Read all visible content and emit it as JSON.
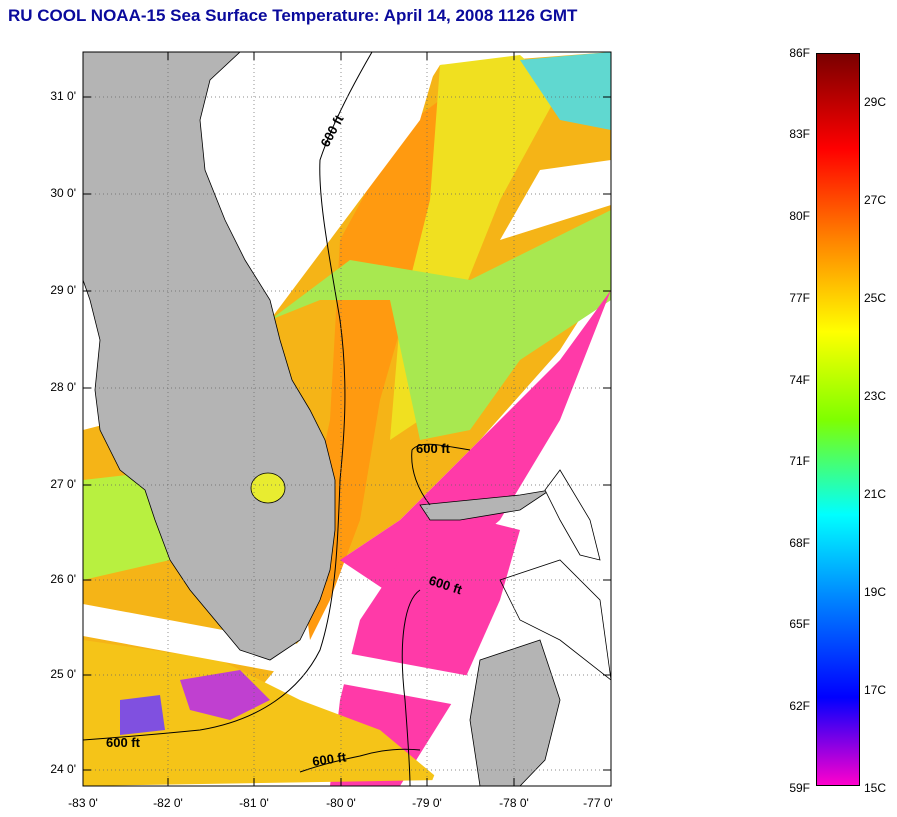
{
  "title": "RU COOL  NOAA-15  Sea Surface Temperature:  April 14, 2008 1126 GMT",
  "map": {
    "lat_ticks": [
      "31 0'",
      "30 0'",
      "29 0'",
      "28 0'",
      "27 0'",
      "26 0'",
      "25 0'",
      "24 0'"
    ],
    "lon_ticks": [
      "-83 0'",
      "-82 0'",
      "-81 0'",
      "-80 0'",
      "-79 0'",
      "-78 0'",
      "-77 0'"
    ],
    "contour_labels": [
      "600 ft",
      "600 ft",
      "600 ft",
      "600 ft",
      "600 ft"
    ],
    "colors": {
      "land": "#b4b4b4",
      "no_data": "#ffffff",
      "frame": "#000000"
    }
  },
  "colorbar": {
    "fahrenheit_labels": [
      "86F",
      "83F",
      "80F",
      "77F",
      "74F",
      "71F",
      "68F",
      "65F",
      "62F",
      "59F"
    ],
    "celsius_labels": [
      "29C",
      "27C",
      "25C",
      "23C",
      "21C",
      "19C",
      "17C",
      "15C"
    ],
    "colors": [
      "#7a0000",
      "#ff0000",
      "#ff7f00",
      "#ffff00",
      "#7fff00",
      "#00ffff",
      "#0080ff",
      "#0000ff",
      "#ff00cc"
    ]
  }
}
